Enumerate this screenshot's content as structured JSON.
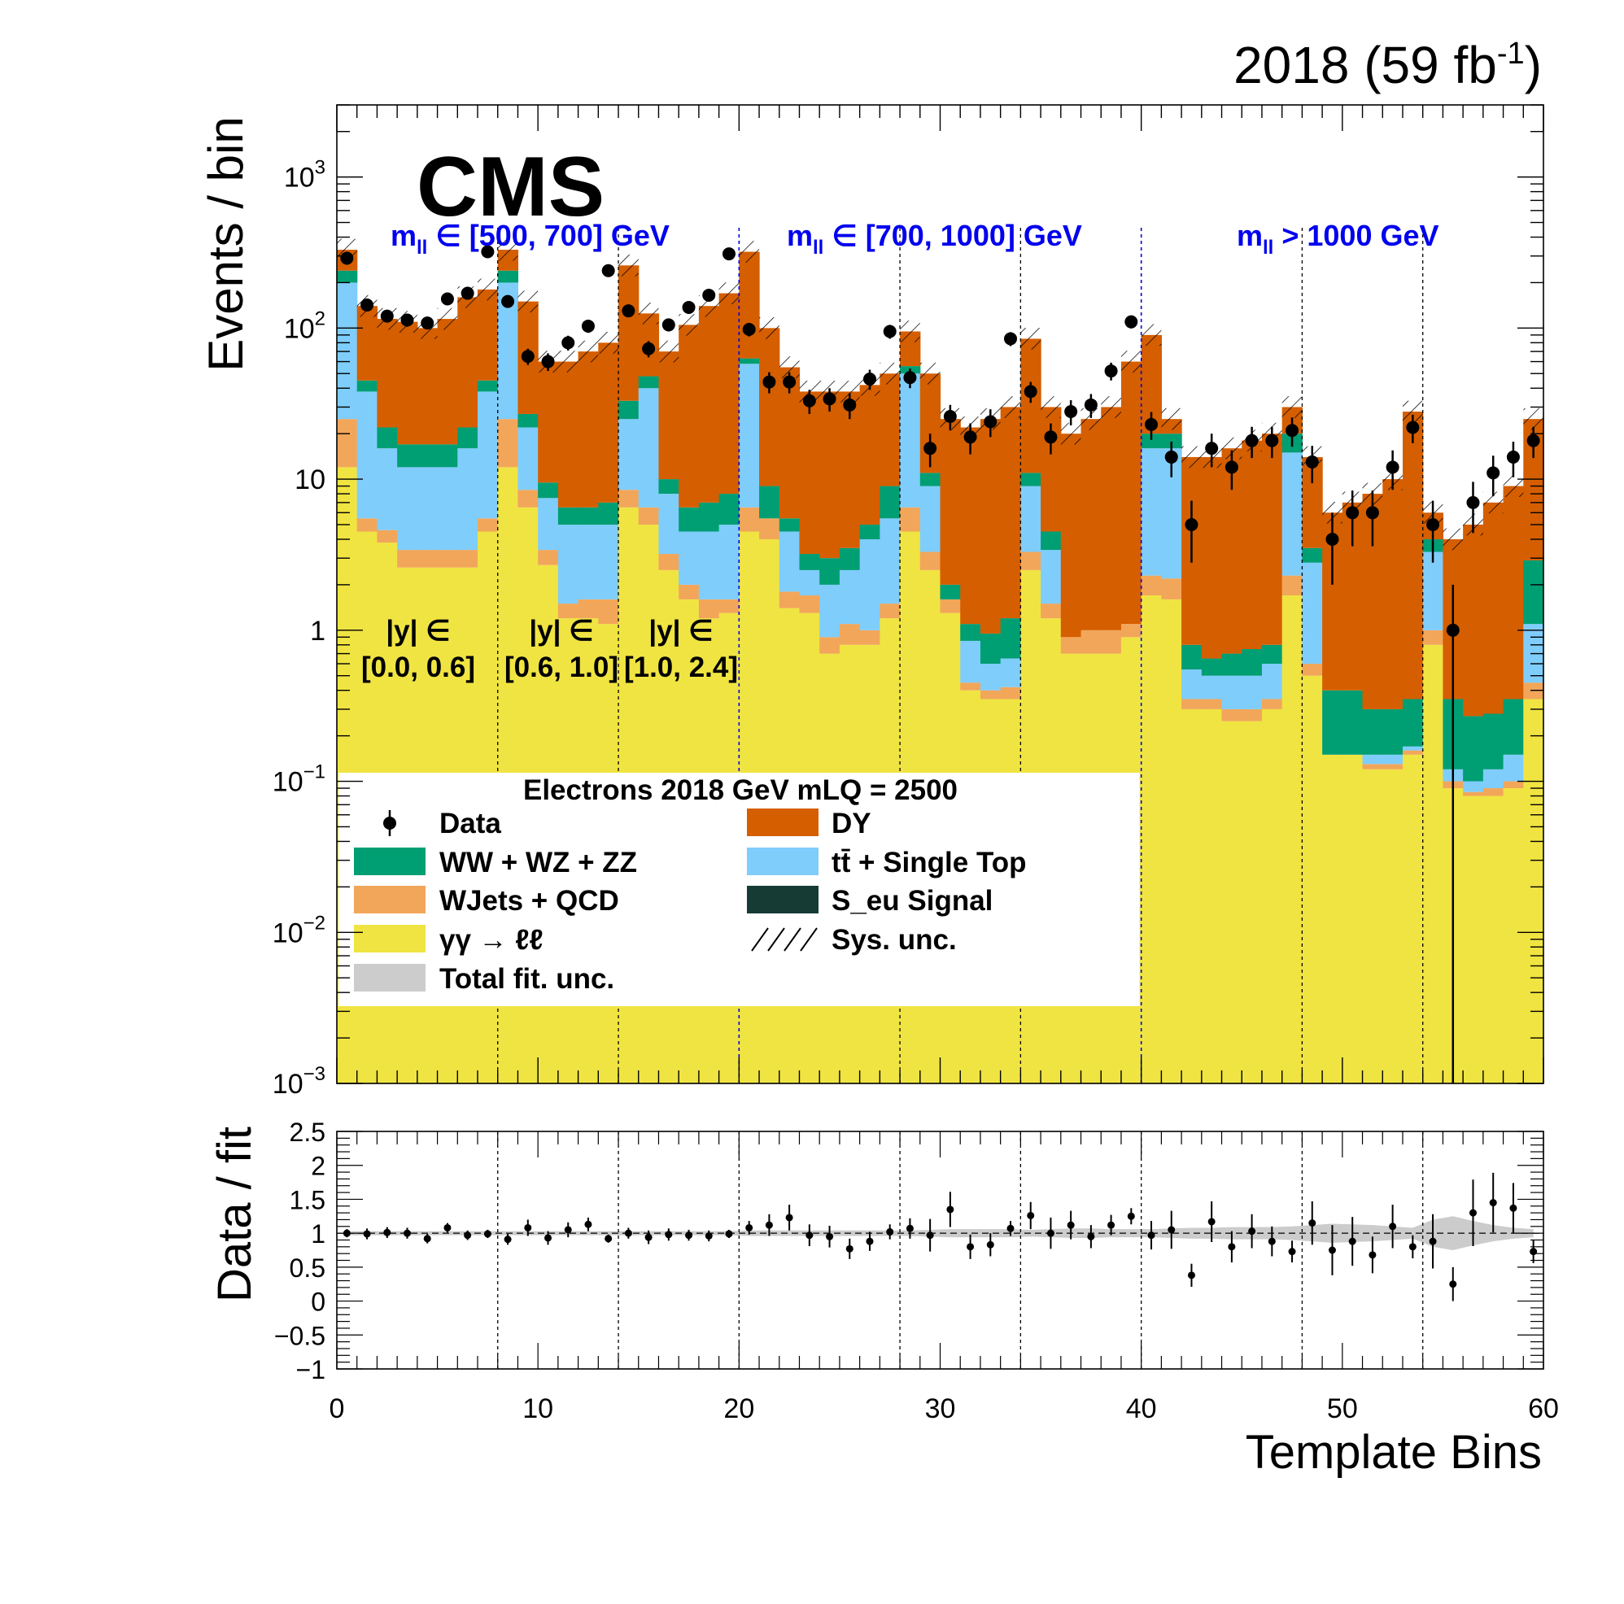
{
  "header": {
    "lumi_prefix": "2018 (59 fb",
    "lumi_exp": "-1",
    "lumi_suffix": ")",
    "experiment": "CMS"
  },
  "region_labels": {
    "mass": [
      {
        "m": "m",
        "sub": "ll",
        "range": "∈ [500, 700] GeV"
      },
      {
        "m": "m",
        "sub": "ll",
        "range": "∈ [700, 1000] GeV"
      },
      {
        "m": "m",
        "sub": "ll",
        "range": "> 1000 GeV"
      }
    ],
    "rapidity": [
      {
        "line1": "|y| ∈",
        "line2": "[0.0, 0.6]"
      },
      {
        "line1": "|y| ∈",
        "line2": "[0.6, 1.0]"
      },
      {
        "line1": "|y| ∈",
        "line2": "[1.0, 2.4]"
      }
    ]
  },
  "legend": {
    "title": "Electrons 2018  GeV mLQ = 2500",
    "entries": [
      {
        "label": "Data",
        "kind": "marker",
        "color": "#000000"
      },
      {
        "label": "DY",
        "kind": "fill",
        "color": "#d55e00"
      },
      {
        "label": "WW + WZ + ZZ",
        "kind": "fill",
        "color": "#009e73"
      },
      {
        "label": "tt̄ + Single Top",
        "kind": "fill",
        "color": "#7fcdfb"
      },
      {
        "label": "WJets + QCD",
        "kind": "fill",
        "color": "#f2a65a"
      },
      {
        "label": "S_eu Signal",
        "kind": "fill",
        "color": "#163b35"
      },
      {
        "label": "γγ → ℓℓ",
        "kind": "fill",
        "color": "#f0e442"
      },
      {
        "label": "Sys. unc.",
        "kind": "hatch",
        "color": "#000000"
      },
      {
        "label": "Total fit. unc.",
        "kind": "fill",
        "color": "#cccccc"
      }
    ]
  },
  "chart_data": [
    {
      "type": "bar",
      "stacked": true,
      "log_y": true,
      "ylabel": "Events / bin",
      "ylim": [
        0.001,
        3000
      ],
      "xlim": [
        0,
        60
      ],
      "x_ticks": [
        0,
        10,
        20,
        30,
        40,
        50,
        60
      ],
      "y_tick_labels": [
        {
          "value": 0.001,
          "base": "10",
          "exp": "−3"
        },
        {
          "value": 0.01,
          "base": "10",
          "exp": "−2"
        },
        {
          "value": 0.1,
          "base": "10",
          "exp": "−1"
        },
        {
          "value": 1,
          "base": "1",
          "exp": ""
        },
        {
          "value": 10,
          "base": "10",
          "exp": ""
        },
        {
          "value": 100,
          "base": "10",
          "exp": "2"
        },
        {
          "value": 1000,
          "base": "10",
          "exp": "3"
        }
      ],
      "region_boundaries_mass": [
        20,
        40
      ],
      "region_boundaries_rapidity": [
        8,
        14,
        28,
        34,
        48,
        54
      ],
      "stack_order": [
        "γγ → ℓℓ",
        "WJets + QCD",
        "tt̄ + Single Top",
        "WW + WZ + ZZ",
        "DY"
      ],
      "cumulative_tops": {
        "γγ → ℓℓ": [
          12,
          4.5,
          3.8,
          2.6,
          2.6,
          2.6,
          2.6,
          4.5,
          12,
          6.5,
          2.7,
          1.2,
          1.2,
          1.1,
          6.5,
          5,
          2.5,
          1.6,
          1.2,
          1.3,
          4.5,
          4,
          1.4,
          1.3,
          0.7,
          0.8,
          0.8,
          1.2,
          4.5,
          2.5,
          1.3,
          0.4,
          0.35,
          0.35,
          2.5,
          1.2,
          0.7,
          0.7,
          0.7,
          0.9,
          1.7,
          1.6,
          0.3,
          0.3,
          0.25,
          0.25,
          0.3,
          1.7,
          0.5,
          0.15,
          0.15,
          0.12,
          0.12,
          0.15,
          0.8,
          0.09,
          0.08,
          0.08,
          0.09,
          0.35
        ],
        "WJets + QCD": [
          25,
          5.5,
          4.6,
          3.4,
          3.4,
          3.4,
          3.4,
          5.5,
          25,
          8.5,
          3.4,
          1.5,
          1.6,
          1.6,
          8.5,
          6.5,
          3.2,
          2,
          1.6,
          1.6,
          6.5,
          5.5,
          1.8,
          1.7,
          0.9,
          1.1,
          1,
          1.5,
          6.5,
          3.3,
          1.6,
          0.45,
          0.4,
          0.42,
          3.3,
          1.5,
          0.9,
          1,
          1,
          1.1,
          2.3,
          2.2,
          0.35,
          0.35,
          0.3,
          0.3,
          0.35,
          2.3,
          0.6,
          0.15,
          0.15,
          0.13,
          0.13,
          0.16,
          1,
          0.1,
          0.085,
          0.09,
          0.1,
          0.45
        ],
        "tt̄ + Single Top": [
          200,
          38,
          16,
          12,
          12,
          12,
          16,
          38,
          200,
          22,
          7.5,
          5,
          5,
          5,
          25,
          40,
          8,
          4.5,
          4.5,
          5,
          58,
          5.5,
          4.5,
          2.5,
          2,
          2.5,
          4,
          5.5,
          50,
          9,
          1.5,
          0.85,
          0.6,
          0.65,
          9,
          3.4,
          0.6,
          0.6,
          0.6,
          0.7,
          16,
          16,
          0.55,
          0.5,
          0.5,
          0.5,
          0.6,
          15,
          2.8,
          0.15,
          0.15,
          0.15,
          0.15,
          0.17,
          3.3,
          0.12,
          0.1,
          0.12,
          0.15,
          1.1
        ],
        "WW + WZ + ZZ": [
          240,
          45,
          22,
          17,
          17,
          17,
          22,
          45,
          240,
          27,
          9.5,
          6.5,
          6.5,
          7,
          33,
          48,
          10,
          6.5,
          7,
          8,
          63,
          9,
          5.5,
          3.2,
          3,
          3.5,
          5,
          9,
          56,
          11,
          2,
          1.1,
          0.95,
          1.2,
          11,
          4.5,
          0.9,
          0.8,
          0.8,
          0.9,
          20,
          20,
          0.8,
          0.65,
          0.7,
          0.75,
          0.8,
          20,
          3.5,
          0.4,
          0.4,
          0.3,
          0.3,
          0.35,
          4,
          0.35,
          0.27,
          0.28,
          0.35,
          2.9
        ],
        "DY": [
          330,
          140,
          115,
          110,
          100,
          115,
          160,
          180,
          330,
          150,
          60,
          60,
          70,
          80,
          260,
          125,
          70,
          105,
          140,
          170,
          320,
          100,
          55,
          38,
          38,
          38,
          42,
          50,
          95,
          50,
          25,
          22,
          25,
          30,
          85,
          30,
          20,
          25,
          30,
          60,
          90,
          25,
          14,
          14,
          16,
          18,
          20,
          30,
          14,
          6,
          7,
          8,
          10,
          28,
          6,
          4,
          5,
          7,
          9,
          25
        ]
      },
      "data_points": [
        {
          "x": 0.5,
          "y": 290,
          "err": 17
        },
        {
          "x": 1.5,
          "y": 142,
          "err": 12
        },
        {
          "x": 2.5,
          "y": 120,
          "err": 11
        },
        {
          "x": 3.5,
          "y": 113,
          "err": 11
        },
        {
          "x": 4.5,
          "y": 108,
          "err": 10
        },
        {
          "x": 5.5,
          "y": 156,
          "err": 12
        },
        {
          "x": 6.5,
          "y": 170,
          "err": 13
        },
        {
          "x": 7.5,
          "y": 320,
          "err": 18
        },
        {
          "x": 8.5,
          "y": 150,
          "err": 12
        },
        {
          "x": 9.5,
          "y": 65,
          "err": 8
        },
        {
          "x": 10.5,
          "y": 60,
          "err": 8
        },
        {
          "x": 11.5,
          "y": 80,
          "err": 9
        },
        {
          "x": 12.5,
          "y": 103,
          "err": 10
        },
        {
          "x": 13.5,
          "y": 240,
          "err": 15
        },
        {
          "x": 14.5,
          "y": 130,
          "err": 11
        },
        {
          "x": 15.5,
          "y": 73,
          "err": 9
        },
        {
          "x": 16.5,
          "y": 105,
          "err": 10
        },
        {
          "x": 17.5,
          "y": 137,
          "err": 12
        },
        {
          "x": 18.5,
          "y": 165,
          "err": 13
        },
        {
          "x": 19.5,
          "y": 310,
          "err": 18
        },
        {
          "x": 20.5,
          "y": 98,
          "err": 10
        },
        {
          "x": 21.5,
          "y": 44,
          "err": 7
        },
        {
          "x": 22.5,
          "y": 44,
          "err": 7
        },
        {
          "x": 23.5,
          "y": 33,
          "err": 6
        },
        {
          "x": 24.5,
          "y": 34,
          "err": 6
        },
        {
          "x": 25.5,
          "y": 31,
          "err": 6
        },
        {
          "x": 26.5,
          "y": 46,
          "err": 7
        },
        {
          "x": 27.5,
          "y": 95,
          "err": 10
        },
        {
          "x": 28.5,
          "y": 47,
          "err": 7
        },
        {
          "x": 29.5,
          "y": 16,
          "err": 4
        },
        {
          "x": 30.5,
          "y": 26,
          "err": 5
        },
        {
          "x": 31.5,
          "y": 19,
          "err": 4.4
        },
        {
          "x": 32.5,
          "y": 24,
          "err": 5
        },
        {
          "x": 33.5,
          "y": 85,
          "err": 9
        },
        {
          "x": 34.5,
          "y": 38,
          "err": 6
        },
        {
          "x": 35.5,
          "y": 19,
          "err": 4.4
        },
        {
          "x": 36.5,
          "y": 28,
          "err": 5.3
        },
        {
          "x": 37.5,
          "y": 31,
          "err": 5.6
        },
        {
          "x": 38.5,
          "y": 52,
          "err": 7
        },
        {
          "x": 39.5,
          "y": 110,
          "err": 10.5
        },
        {
          "x": 40.5,
          "y": 23,
          "err": 4.8
        },
        {
          "x": 41.5,
          "y": 14,
          "err": 3.7
        },
        {
          "x": 42.5,
          "y": 5,
          "err": 2.2
        },
        {
          "x": 43.5,
          "y": 16,
          "err": 4
        },
        {
          "x": 44.5,
          "y": 12,
          "err": 3.5
        },
        {
          "x": 45.5,
          "y": 18,
          "err": 4.2
        },
        {
          "x": 46.5,
          "y": 18,
          "err": 4.2
        },
        {
          "x": 47.5,
          "y": 21,
          "err": 4.6
        },
        {
          "x": 48.5,
          "y": 13,
          "err": 3.6
        },
        {
          "x": 49.5,
          "y": 4,
          "err": 2
        },
        {
          "x": 50.5,
          "y": 6,
          "err": 2.4
        },
        {
          "x": 51.5,
          "y": 6,
          "err": 2.4
        },
        {
          "x": 52.5,
          "y": 12,
          "err": 3.5
        },
        {
          "x": 53.5,
          "y": 22,
          "err": 4.7
        },
        {
          "x": 54.5,
          "y": 5,
          "err": 2.2
        },
        {
          "x": 55.5,
          "y": 1,
          "err": 1
        },
        {
          "x": 56.5,
          "y": 7,
          "err": 2.6
        },
        {
          "x": 57.5,
          "y": 11,
          "err": 3.3
        },
        {
          "x": 58.5,
          "y": 14,
          "err": 3.7
        },
        {
          "x": 59.5,
          "y": 18,
          "err": 4.2
        }
      ]
    },
    {
      "type": "scatter",
      "ylabel": "Data / fit",
      "xlabel": "Template Bins",
      "ylim": [
        -1,
        2.5
      ],
      "xlim": [
        0,
        60
      ],
      "x_ticks": [
        0,
        10,
        20,
        30,
        40,
        50,
        60
      ],
      "y_ticks": [
        {
          "value": -1,
          "label": "−1"
        },
        {
          "value": -0.5,
          "label": "−0.5"
        },
        {
          "value": 0,
          "label": "0"
        },
        {
          "value": 0.5,
          "label": "0.5"
        },
        {
          "value": 1,
          "label": "1"
        },
        {
          "value": 1.5,
          "label": "1.5"
        },
        {
          "value": 2,
          "label": "2"
        },
        {
          "value": 2.5,
          "label": "2.5"
        }
      ],
      "ratio_points": [
        {
          "x": 0.5,
          "y": 1.0,
          "err": 0.06
        },
        {
          "x": 1.5,
          "y": 0.99,
          "err": 0.08
        },
        {
          "x": 2.5,
          "y": 1.01,
          "err": 0.08
        },
        {
          "x": 3.5,
          "y": 1.0,
          "err": 0.08
        },
        {
          "x": 4.5,
          "y": 0.92,
          "err": 0.07
        },
        {
          "x": 5.5,
          "y": 1.08,
          "err": 0.07
        },
        {
          "x": 6.5,
          "y": 0.97,
          "err": 0.07
        },
        {
          "x": 7.5,
          "y": 0.99,
          "err": 0.06
        },
        {
          "x": 8.5,
          "y": 0.91,
          "err": 0.08
        },
        {
          "x": 9.5,
          "y": 1.08,
          "err": 0.12
        },
        {
          "x": 10.5,
          "y": 0.93,
          "err": 0.1
        },
        {
          "x": 11.5,
          "y": 1.05,
          "err": 0.11
        },
        {
          "x": 12.5,
          "y": 1.13,
          "err": 0.1
        },
        {
          "x": 13.5,
          "y": 0.92,
          "err": 0.06
        },
        {
          "x": 14.5,
          "y": 1.0,
          "err": 0.08
        },
        {
          "x": 15.5,
          "y": 0.94,
          "err": 0.1
        },
        {
          "x": 16.5,
          "y": 0.98,
          "err": 0.09
        },
        {
          "x": 17.5,
          "y": 0.97,
          "err": 0.08
        },
        {
          "x": 18.5,
          "y": 0.96,
          "err": 0.08
        },
        {
          "x": 19.5,
          "y": 0.99,
          "err": 0.06
        },
        {
          "x": 20.5,
          "y": 1.08,
          "err": 0.1
        },
        {
          "x": 21.5,
          "y": 1.12,
          "err": 0.16
        },
        {
          "x": 22.5,
          "y": 1.23,
          "err": 0.19
        },
        {
          "x": 23.5,
          "y": 0.97,
          "err": 0.16
        },
        {
          "x": 24.5,
          "y": 0.95,
          "err": 0.16
        },
        {
          "x": 25.5,
          "y": 0.77,
          "err": 0.15
        },
        {
          "x": 26.5,
          "y": 0.88,
          "err": 0.14
        },
        {
          "x": 27.5,
          "y": 1.02,
          "err": 0.11
        },
        {
          "x": 28.5,
          "y": 1.07,
          "err": 0.15
        },
        {
          "x": 29.5,
          "y": 0.97,
          "err": 0.24
        },
        {
          "x": 30.5,
          "y": 1.35,
          "err": 0.26
        },
        {
          "x": 31.5,
          "y": 0.8,
          "err": 0.18
        },
        {
          "x": 32.5,
          "y": 0.83,
          "err": 0.17
        },
        {
          "x": 33.5,
          "y": 1.07,
          "err": 0.11
        },
        {
          "x": 34.5,
          "y": 1.26,
          "err": 0.2
        },
        {
          "x": 35.5,
          "y": 1.0,
          "err": 0.23
        },
        {
          "x": 36.5,
          "y": 1.12,
          "err": 0.21
        },
        {
          "x": 37.5,
          "y": 0.95,
          "err": 0.17
        },
        {
          "x": 38.5,
          "y": 1.12,
          "err": 0.15
        },
        {
          "x": 39.5,
          "y": 1.25,
          "err": 0.12
        },
        {
          "x": 40.5,
          "y": 0.97,
          "err": 0.21
        },
        {
          "x": 41.5,
          "y": 1.05,
          "err": 0.28
        },
        {
          "x": 42.5,
          "y": 0.38,
          "err": 0.17
        },
        {
          "x": 43.5,
          "y": 1.17,
          "err": 0.3
        },
        {
          "x": 44.5,
          "y": 0.8,
          "err": 0.23
        },
        {
          "x": 45.5,
          "y": 1.03,
          "err": 0.25
        },
        {
          "x": 46.5,
          "y": 0.88,
          "err": 0.22
        },
        {
          "x": 47.5,
          "y": 0.73,
          "err": 0.16
        },
        {
          "x": 48.5,
          "y": 1.15,
          "err": 0.32
        },
        {
          "x": 49.5,
          "y": 0.75,
          "err": 0.37
        },
        {
          "x": 50.5,
          "y": 0.88,
          "err": 0.36
        },
        {
          "x": 51.5,
          "y": 0.68,
          "err": 0.27
        },
        {
          "x": 52.5,
          "y": 1.1,
          "err": 0.32
        },
        {
          "x": 53.5,
          "y": 0.8,
          "err": 0.17
        },
        {
          "x": 54.5,
          "y": 0.88,
          "err": 0.4
        },
        {
          "x": 55.5,
          "y": 0.25,
          "err": 0.25
        },
        {
          "x": 56.5,
          "y": 1.3,
          "err": 0.49
        },
        {
          "x": 57.5,
          "y": 1.45,
          "err": 0.44
        },
        {
          "x": 58.5,
          "y": 1.37,
          "err": 0.37
        },
        {
          "x": 59.5,
          "y": 0.73,
          "err": 0.17
        }
      ],
      "uncertainty_band_halfwidth": [
        0.03,
        0.03,
        0.03,
        0.03,
        0.03,
        0.03,
        0.03,
        0.03,
        0.03,
        0.03,
        0.03,
        0.03,
        0.03,
        0.03,
        0.03,
        0.03,
        0.03,
        0.03,
        0.03,
        0.03,
        0.04,
        0.04,
        0.04,
        0.04,
        0.04,
        0.04,
        0.04,
        0.04,
        0.04,
        0.05,
        0.06,
        0.06,
        0.06,
        0.06,
        0.05,
        0.06,
        0.07,
        0.07,
        0.06,
        0.06,
        0.06,
        0.07,
        0.08,
        0.08,
        0.09,
        0.09,
        0.09,
        0.1,
        0.12,
        0.14,
        0.13,
        0.12,
        0.1,
        0.08,
        0.2,
        0.25,
        0.18,
        0.12,
        0.08,
        0.06
      ]
    }
  ]
}
